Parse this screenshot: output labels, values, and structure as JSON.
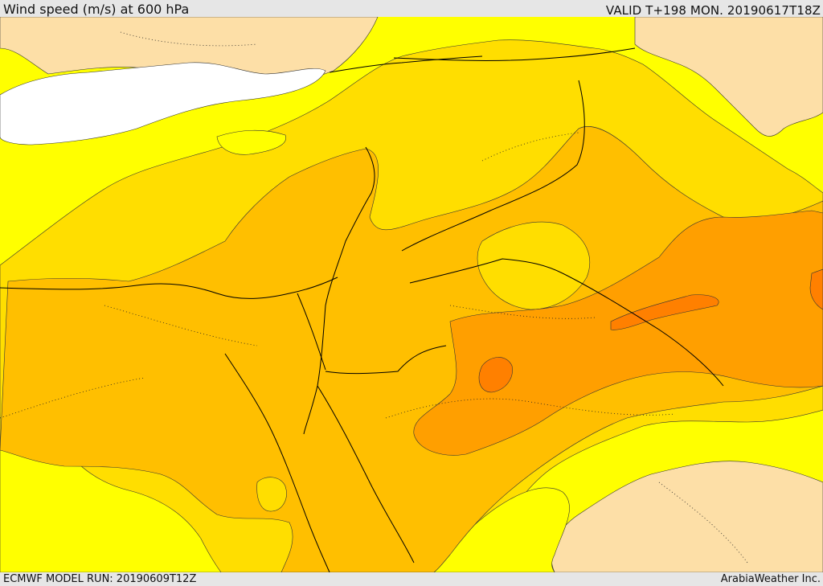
{
  "header": {
    "title": "Wind speed (m/s) at 600 hPa",
    "valid": "VALID T+198 MON. 20190617T18Z"
  },
  "footer": {
    "model_run": "ECMWF MODEL RUN: 20190609T12Z",
    "credit": "ArabiaWeather Inc."
  },
  "map": {
    "field": "wind speed",
    "level": "600 hPa",
    "colors": {
      "white_water": "#ffffff",
      "light_peach": "#fddfa7",
      "yellow": "#ffff00",
      "gold": "#ffde00",
      "light_orange": "#ffbf00",
      "orange": "#ff9f00",
      "dark_orange": "#ff8000",
      "contour_line": "#333333",
      "border_line": "#000000"
    }
  }
}
